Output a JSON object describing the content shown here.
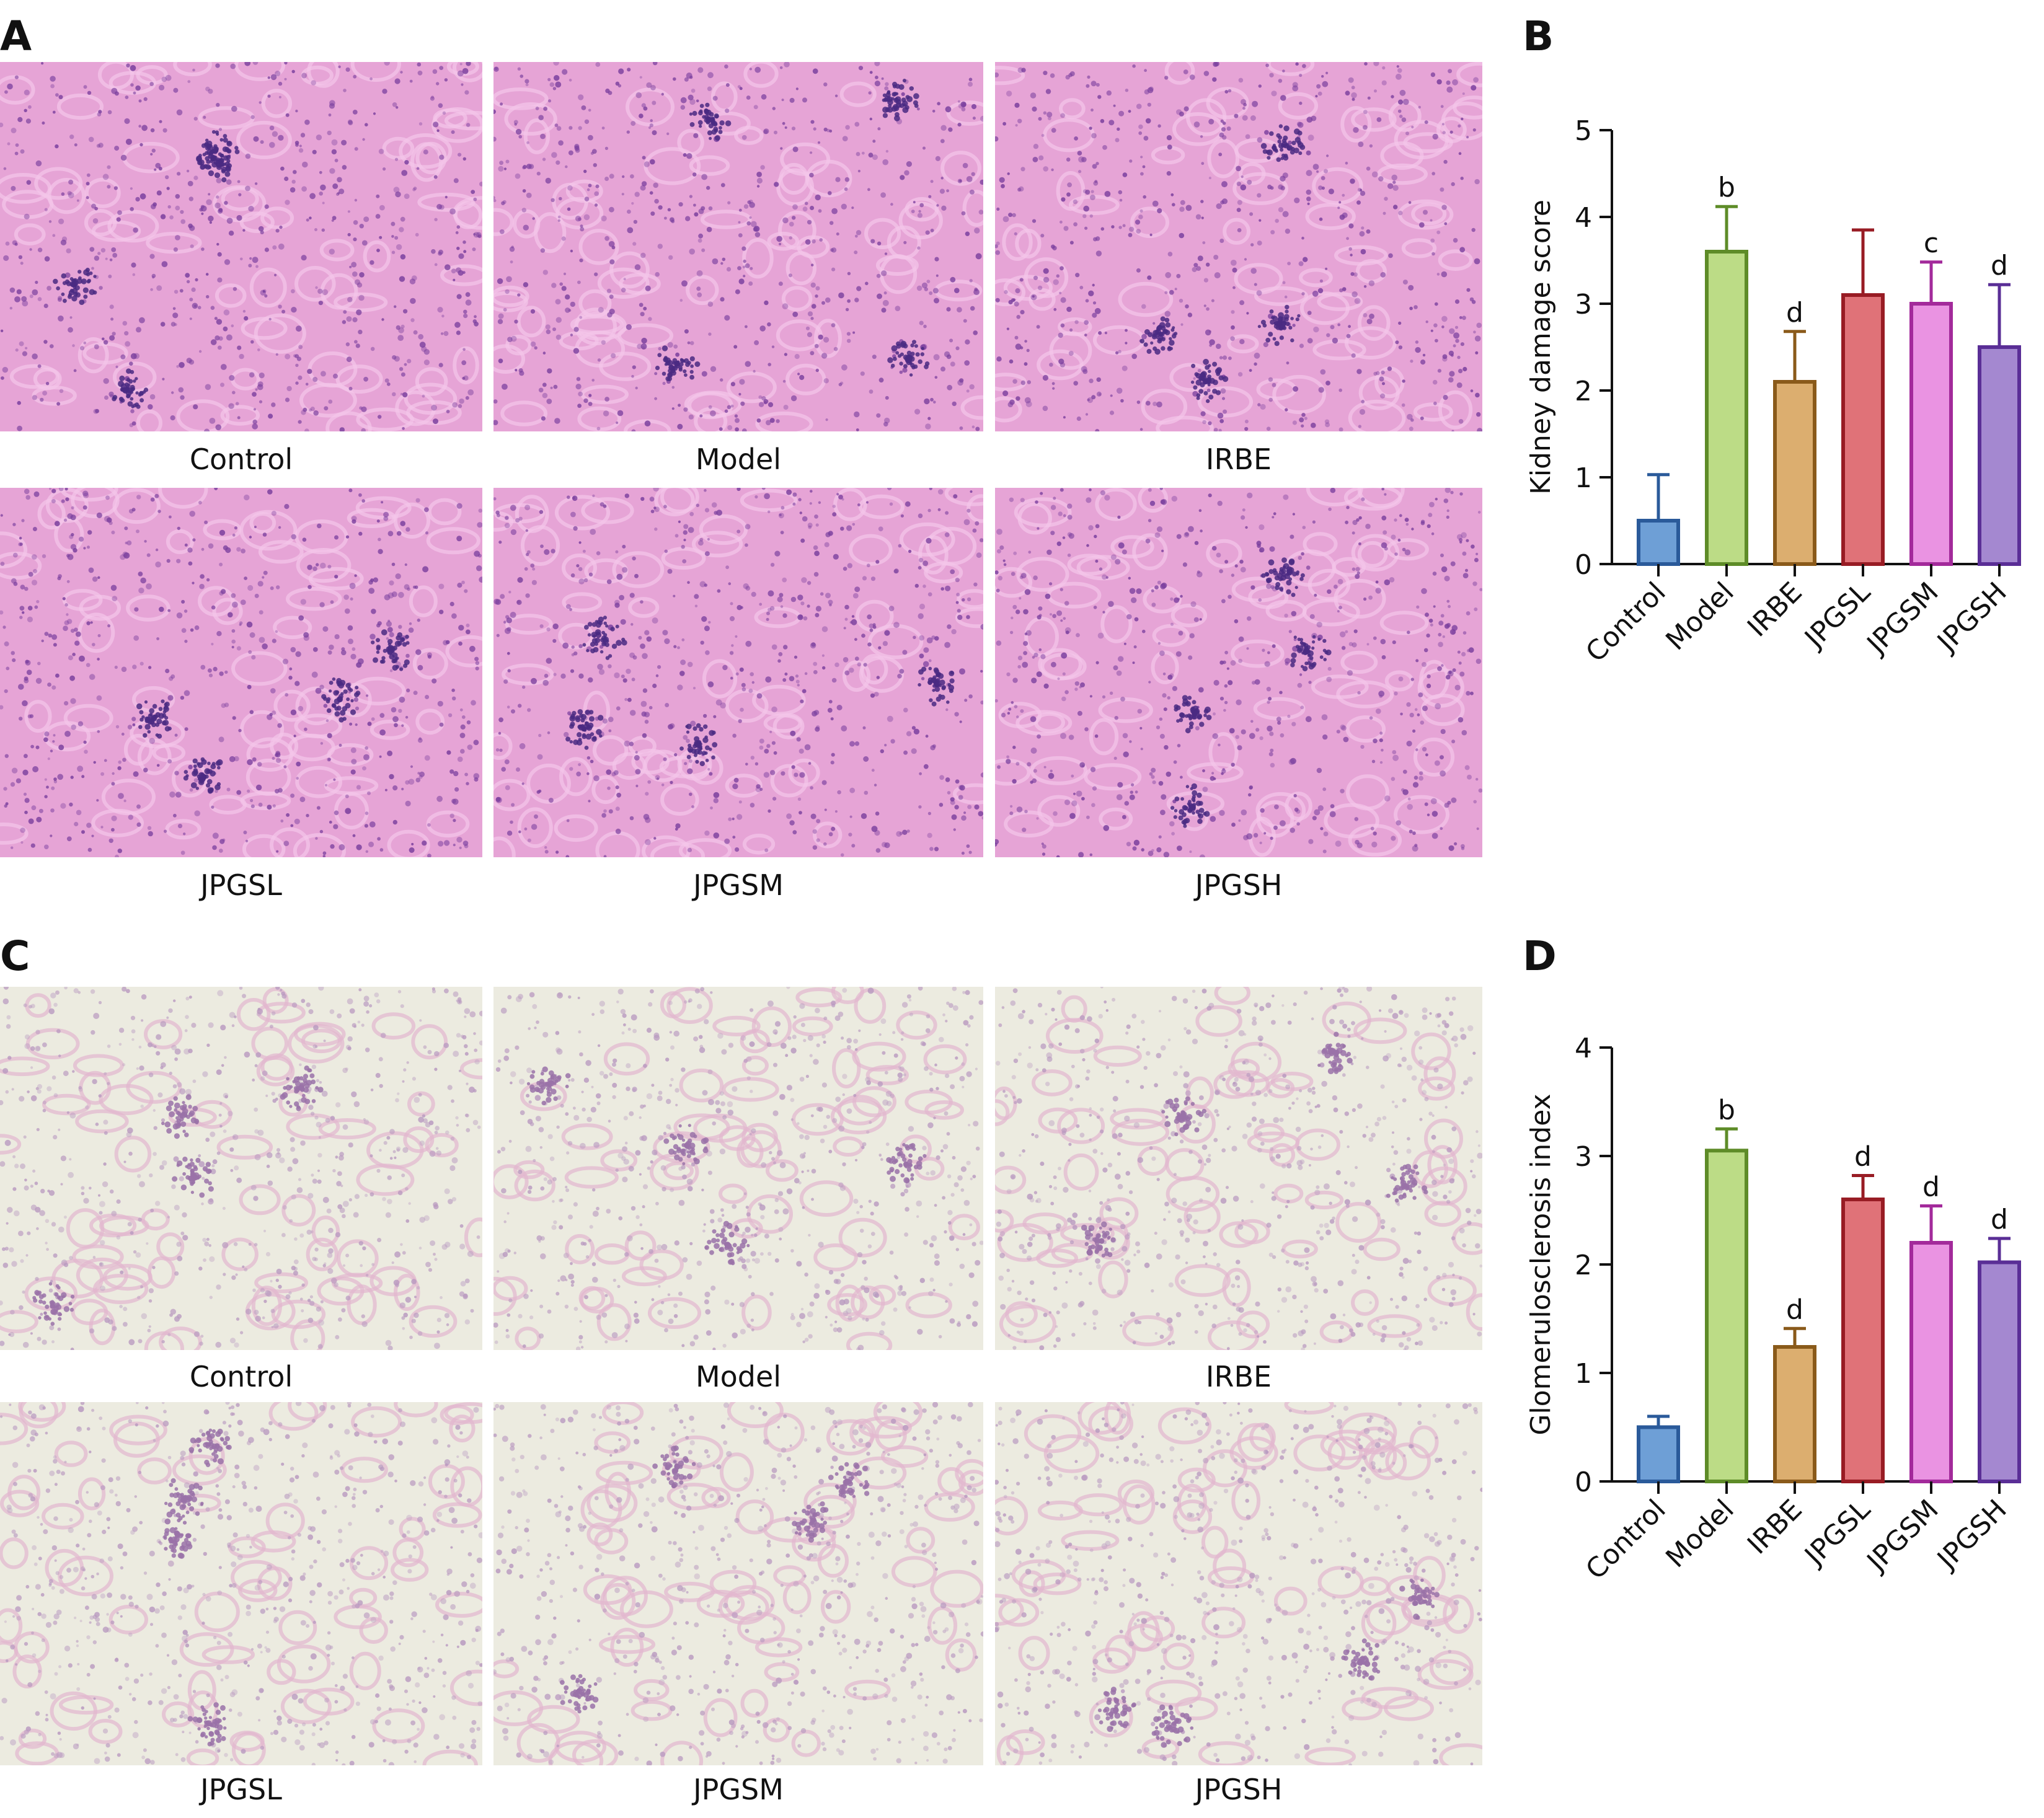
{
  "figure": {
    "panel_labels": {
      "a": "A",
      "b": "B",
      "c": "C",
      "d": "D"
    },
    "panel_a": {
      "stain": "he",
      "images": [
        {
          "caption": "Control"
        },
        {
          "caption": "Model"
        },
        {
          "caption": "IRBE"
        },
        {
          "caption": "JPGSL"
        },
        {
          "caption": "JPGSM"
        },
        {
          "caption": "JPGSH"
        }
      ]
    },
    "panel_c": {
      "stain": "pas",
      "images": [
        {
          "caption": "Control"
        },
        {
          "caption": "Model"
        },
        {
          "caption": "IRBE"
        },
        {
          "caption": "JPGSL"
        },
        {
          "caption": "JPGSM"
        },
        {
          "caption": "JPGSH"
        }
      ]
    }
  },
  "colors": {
    "he_background": "#e6a4d6",
    "he_cells": "#7a3f9e",
    "pas_background": "#ecebe0",
    "pas_cells": "#b99ac0"
  },
  "chart_data": [
    {
      "panel": "B",
      "type": "bar",
      "title": "",
      "xlabel": "",
      "ylabel": "Kidney damage score",
      "ylim": [
        0,
        5
      ],
      "yticks": [
        0,
        1,
        2,
        3,
        4,
        5
      ],
      "categories": [
        "Control",
        "Model",
        "IRBE",
        "JPGSL",
        "JPGSM",
        "JPGSH"
      ],
      "values": [
        0.5,
        3.6,
        2.1,
        3.1,
        3.0,
        2.5
      ],
      "errors": [
        0.53,
        0.52,
        0.58,
        0.75,
        0.48,
        0.72
      ],
      "annotations": [
        "",
        "b",
        "d",
        "",
        "c",
        "d"
      ],
      "fill_colors": [
        "#6e9fd6",
        "#bcdc86",
        "#dcae6f",
        "#e07278",
        "#ea93e2",
        "#a488d0"
      ],
      "edge_colors": [
        "#2a5a9a",
        "#5e8c28",
        "#8a5a1a",
        "#981c24",
        "#a32a9b",
        "#5a2e96"
      ],
      "grid": false
    },
    {
      "panel": "D",
      "type": "bar",
      "title": "",
      "xlabel": "",
      "ylabel": "Glomerulosclerosis index",
      "ylim": [
        0,
        4
      ],
      "yticks": [
        0,
        1,
        2,
        3,
        4
      ],
      "categories": [
        "Control",
        "Model",
        "IRBE",
        "JPGSL",
        "JPGSM",
        "JPGSH"
      ],
      "values": [
        0.5,
        3.05,
        1.24,
        2.6,
        2.2,
        2.02
      ],
      "errors": [
        0.1,
        0.2,
        0.17,
        0.22,
        0.34,
        0.22
      ],
      "annotations": [
        "",
        "b",
        "d",
        "d",
        "d",
        "d"
      ],
      "fill_colors": [
        "#6e9fd6",
        "#bcdc86",
        "#dcae6f",
        "#e07278",
        "#ea93e2",
        "#a488d0"
      ],
      "edge_colors": [
        "#2a5a9a",
        "#5e8c28",
        "#8a5a1a",
        "#981c24",
        "#a32a9b",
        "#5a2e96"
      ],
      "grid": false
    }
  ]
}
